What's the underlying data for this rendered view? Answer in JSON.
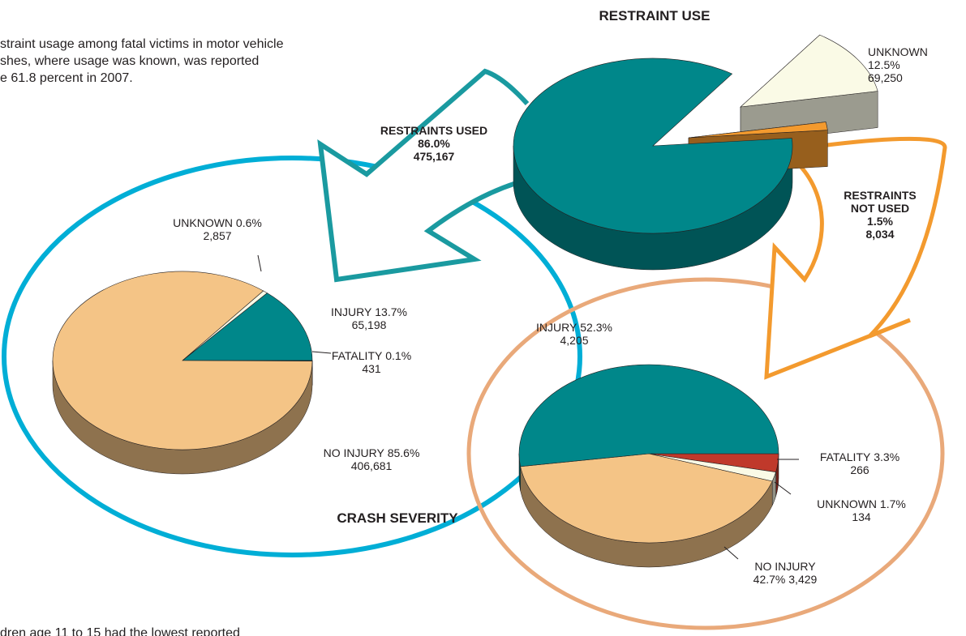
{
  "intro_lines": [
    "straint usage among fatal victims in motor vehicle",
    "shes, where usage was known, was reported",
    "e 61.8 percent in 2007."
  ],
  "footer_line": "dren age 11 to 15 had the lowest reported",
  "chart_data": [
    {
      "type": "pie",
      "title": "RESTRAINT USE",
      "categories": [
        "RESTRAINTS USED",
        "UNKNOWN",
        "RESTRAINTS NOT USED"
      ],
      "values": [
        86.0,
        12.5,
        1.5
      ],
      "value_labels": [
        "86.0%",
        "12.5%",
        "1.5%"
      ],
      "counts": [
        475167,
        69250,
        8034
      ],
      "colors": [
        "#00878a",
        "#fafae6",
        "#f39a2e"
      ]
    },
    {
      "type": "pie",
      "categories": [
        "INJURY",
        "FATALITY",
        "NO INJURY",
        "UNKNOWN"
      ],
      "values": [
        13.7,
        0.1,
        85.6,
        0.6
      ],
      "value_labels": [
        "13.7%",
        "0.1%",
        "85.6%",
        "0.6%"
      ],
      "counts": [
        65198,
        431,
        406681,
        2857
      ],
      "colors": [
        "#00878a",
        "#c0392b",
        "#f4c486",
        "#fafae6"
      ]
    },
    {
      "type": "pie",
      "title": "CRASH SEVERITY",
      "categories": [
        "FATALITY",
        "UNKNOWN",
        "NO INJURY",
        "INJURY"
      ],
      "values": [
        3.3,
        1.7,
        42.7,
        52.3
      ],
      "value_labels": [
        "3.3%",
        "1.7%",
        "42.7%",
        "52.3%"
      ],
      "counts": [
        266,
        134,
        3429,
        4205
      ],
      "colors": [
        "#c0392b",
        "#fafae6",
        "#f4c486",
        "#00878a"
      ]
    }
  ]
}
